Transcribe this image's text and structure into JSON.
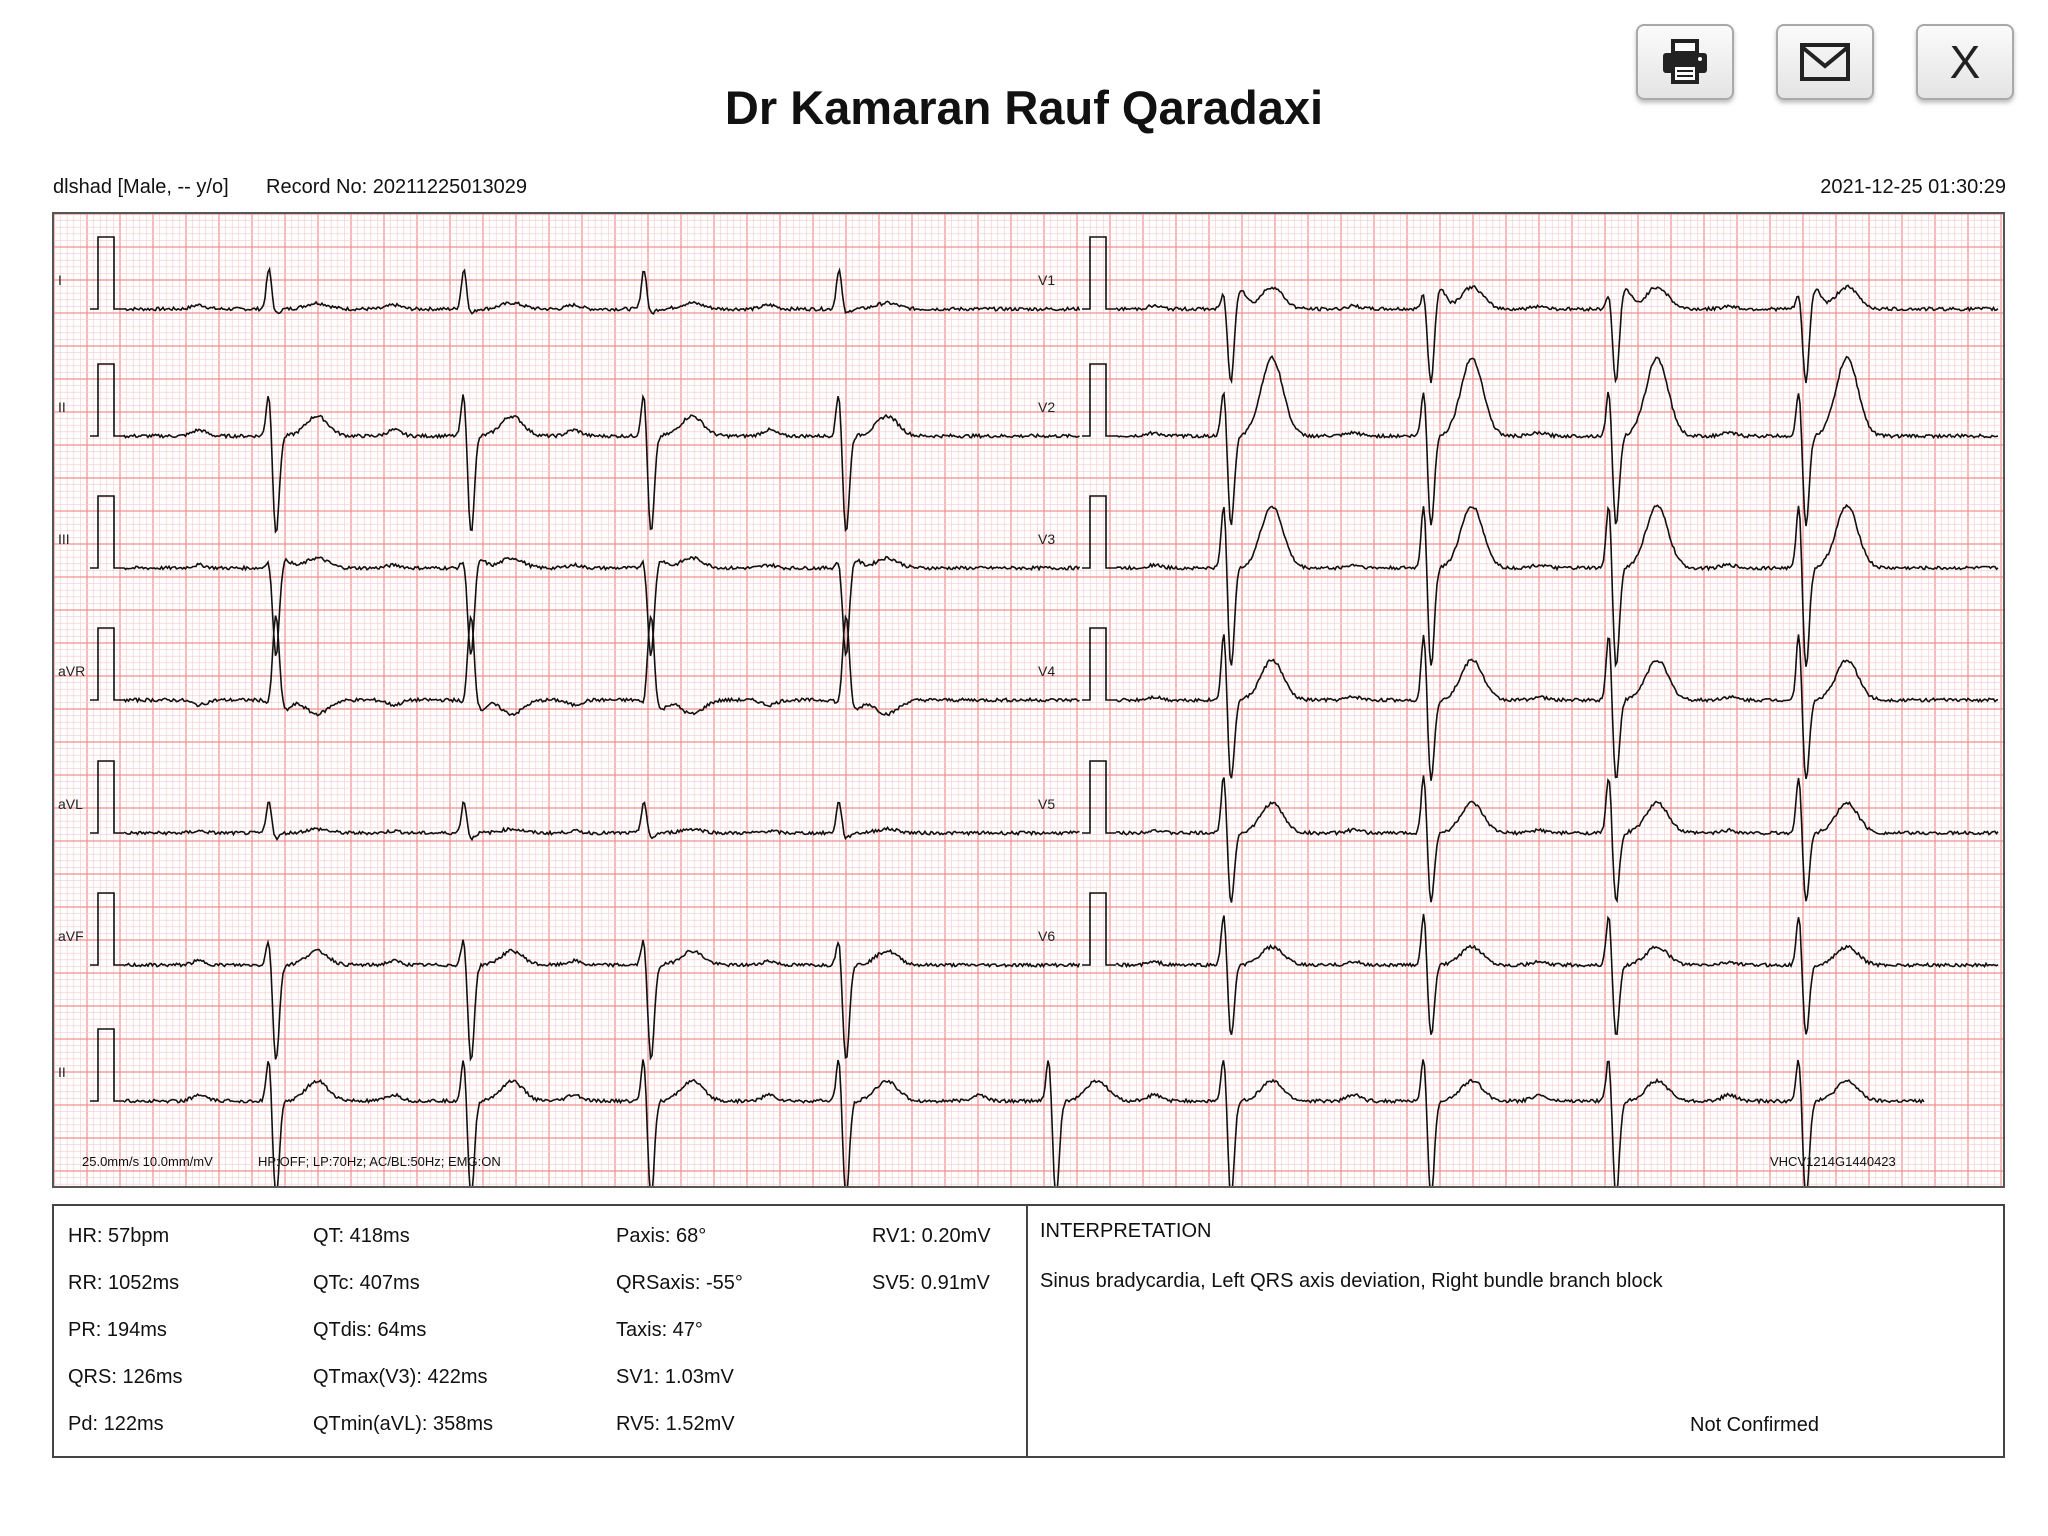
{
  "header": {
    "doctor_name": "Dr Kamaran Rauf Qaradaxi",
    "patient": "dlshad [Male, -- y/o]",
    "record_no": "Record No: 20211225013029",
    "datetime": "2021-12-25 01:30:29"
  },
  "toolbar": {
    "print_icon": "printer-icon",
    "email_icon": "envelope-icon",
    "close_label": "X"
  },
  "ecg": {
    "left_leads": [
      "I",
      "II",
      "III",
      "aVR",
      "aVL",
      "aVF",
      "II"
    ],
    "right_leads": [
      "V1",
      "V2",
      "V3",
      "V4",
      "V5",
      "V6"
    ],
    "speed_gain": "25.0mm/s  10.0mm/mV",
    "filters": "HP:OFF; LP:70Hz; AC/BL:50Hz; EMG:ON",
    "device_id": "VHCV1214G1440423",
    "grid_color": "#f28e8e",
    "grid_minor_color": "#f8caca",
    "trace_color": "#111111"
  },
  "measurements": {
    "col1": [
      "HR: 57bpm",
      "RR: 1052ms",
      "PR: 194ms",
      "QRS: 126ms",
      "Pd: 122ms"
    ],
    "col2": [
      "QT: 418ms",
      "QTc: 407ms",
      "QTdis: 64ms",
      "QTmax(V3): 422ms",
      "QTmin(aVL): 358ms"
    ],
    "col3": [
      "Paxis: 68°",
      "QRSaxis: -55°",
      "Taxis: 47°",
      "SV1: 1.03mV",
      "RV5: 1.52mV"
    ],
    "col4": [
      "RV1: 0.20mV",
      "SV5: 0.91mV"
    ]
  },
  "interpretation": {
    "heading": "INTERPRETATION",
    "text": "Sinus bradycardia, Left QRS axis deviation, Right bundle branch block",
    "status": "Not Confirmed"
  }
}
